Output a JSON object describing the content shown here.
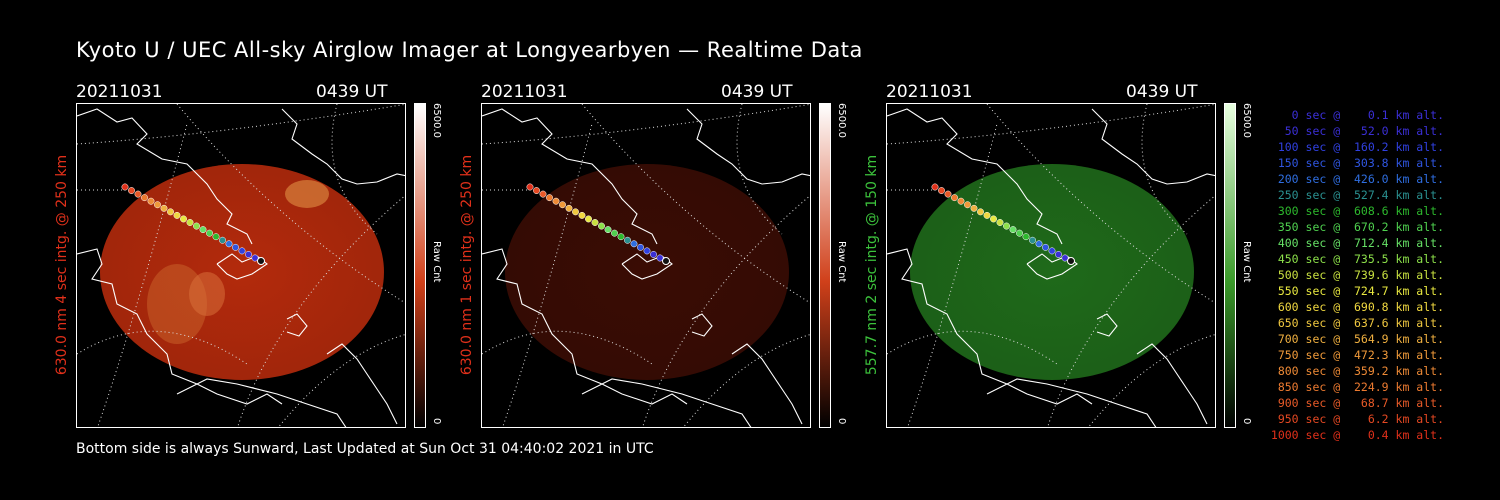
{
  "title": "Kyoto U / UEC All-sky Airglow Imager at Longyearbyen — Realtime Data",
  "panels": [
    {
      "date": "20211031",
      "time": "0439 UT",
      "side_label": "630.0 nm 4 sec intg. @ 250 km",
      "side_color": "#e0301a",
      "color_top": "6500.0",
      "color_bottom": "0",
      "color_unit": "Raw Cnt",
      "tint": "#b32a0c",
      "brightness": 0.85
    },
    {
      "date": "20211031",
      "time": "0439 UT",
      "side_label": "630.0 nm 1 sec intg. @ 250 km",
      "side_color": "#e0301a",
      "color_top": "6500.0",
      "color_bottom": "0",
      "color_unit": "Raw Cnt",
      "tint": "#3a0c04",
      "brightness": 0.35
    },
    {
      "date": "20211031",
      "time": "0439 UT",
      "side_label": "557.7 nm 2 sec intg. @ 150 km",
      "side_color": "#3cc23c",
      "color_top": "6500.0",
      "color_bottom": "0",
      "color_unit": "Raw Cnt",
      "tint": "#1f6a1a",
      "brightness": 0.6
    }
  ],
  "legend": [
    {
      "text": "   0 sec @    0.1 km alt.",
      "color": "#3b2fd6"
    },
    {
      "text": "  50 sec @   52.0 km alt.",
      "color": "#3b2fd6"
    },
    {
      "text": " 100 sec @  160.2 km alt.",
      "color": "#3040e0"
    },
    {
      "text": " 150 sec @  303.8 km alt.",
      "color": "#2f55e0"
    },
    {
      "text": " 200 sec @  426.0 km alt.",
      "color": "#2f6ee0"
    },
    {
      "text": " 250 sec @  527.4 km alt.",
      "color": "#2a9090"
    },
    {
      "text": " 300 sec @  608.6 km alt.",
      "color": "#2db82d"
    },
    {
      "text": " 350 sec @  670.2 km alt.",
      "color": "#4fd04f"
    },
    {
      "text": " 400 sec @  712.4 km alt.",
      "color": "#66e066"
    },
    {
      "text": " 450 sec @  735.5 km alt.",
      "color": "#8ce04a"
    },
    {
      "text": " 500 sec @  739.6 km alt.",
      "color": "#c8e040"
    },
    {
      "text": " 550 sec @  724.7 km alt.",
      "color": "#e8e840"
    },
    {
      "text": " 600 sec @  690.8 km alt.",
      "color": "#f0d840"
    },
    {
      "text": " 650 sec @  637.6 km alt.",
      "color": "#f0c840"
    },
    {
      "text": " 700 sec @  564.9 km alt.",
      "color": "#f0b040"
    },
    {
      "text": " 750 sec @  472.3 km alt.",
      "color": "#f09a3a"
    },
    {
      "text": " 800 sec @  359.2 km alt.",
      "color": "#ee8a36"
    },
    {
      "text": " 850 sec @  224.9 km alt.",
      "color": "#ec7a30"
    },
    {
      "text": " 900 sec @   68.7 km alt.",
      "color": "#e85a28"
    },
    {
      "text": " 950 sec @    6.2 km alt.",
      "color": "#e44822"
    },
    {
      "text": "1000 sec @    0.4 km alt.",
      "color": "#e0301a"
    }
  ],
  "footer": "Bottom side is always Sunward, Last Updated at Sun Oct 31 04:40:02 2021 in UTC"
}
